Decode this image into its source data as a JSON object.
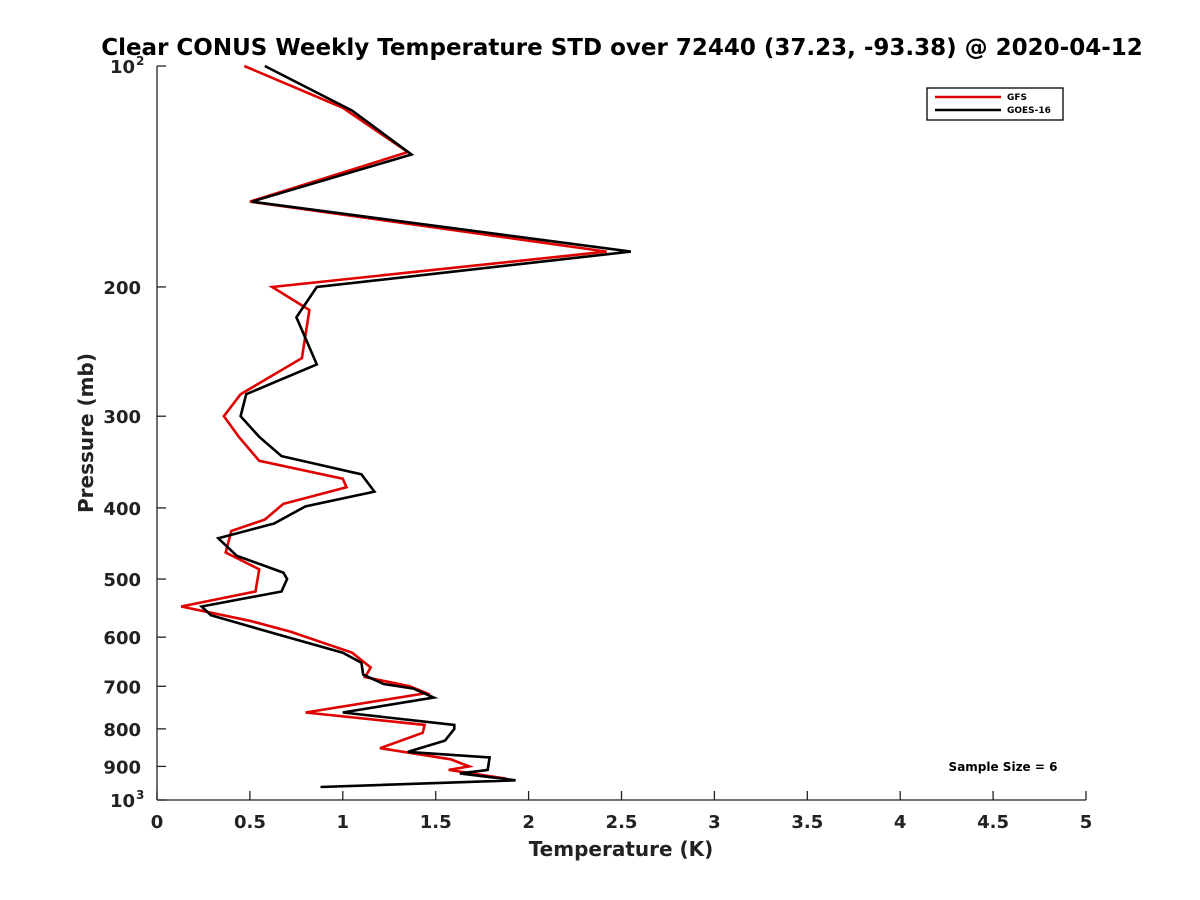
{
  "chart_data": {
    "type": "line",
    "title": "Clear CONUS Weekly Temperature STD over 72440 (37.23, -93.38) @ 2020-04-12",
    "xlabel": "Temperature (K)",
    "ylabel": "Pressure (mb)",
    "xlim": [
      0,
      5
    ],
    "ylim": [
      100,
      1000
    ],
    "y_scale": "log",
    "y_reversed": true,
    "grid": false,
    "x_ticks": [
      {
        "value": 0,
        "label": "0"
      },
      {
        "value": 0.5,
        "label": "0.5"
      },
      {
        "value": 1,
        "label": "1"
      },
      {
        "value": 1.5,
        "label": "1.5"
      },
      {
        "value": 2,
        "label": "2"
      },
      {
        "value": 2.5,
        "label": "2.5"
      },
      {
        "value": 3,
        "label": "3"
      },
      {
        "value": 3.5,
        "label": "3.5"
      },
      {
        "value": 4,
        "label": "4"
      },
      {
        "value": 4.5,
        "label": "4.5"
      },
      {
        "value": 5,
        "label": "5"
      }
    ],
    "y_ticks": [
      {
        "value": 100,
        "label": "10",
        "sup": "2"
      },
      {
        "value": 200,
        "label": "200",
        "sup": ""
      },
      {
        "value": 300,
        "label": "300",
        "sup": ""
      },
      {
        "value": 400,
        "label": "400",
        "sup": ""
      },
      {
        "value": 500,
        "label": "500",
        "sup": ""
      },
      {
        "value": 600,
        "label": "600",
        "sup": ""
      },
      {
        "value": 700,
        "label": "700",
        "sup": ""
      },
      {
        "value": 800,
        "label": "800",
        "sup": ""
      },
      {
        "value": 900,
        "label": "900",
        "sup": ""
      },
      {
        "value": 1000,
        "label": "10",
        "sup": "3"
      }
    ],
    "legend_position": "top-right",
    "annotation": "Sample Size = 6",
    "series": [
      {
        "name": "GFS",
        "color": "#e00000",
        "points": [
          [
            0.47,
            100
          ],
          [
            1.0,
            114
          ],
          [
            1.35,
            131
          ],
          [
            0.5,
            153
          ],
          [
            2.42,
            179
          ],
          [
            0.62,
            200
          ],
          [
            0.82,
            215
          ],
          [
            0.78,
            250
          ],
          [
            0.45,
            280
          ],
          [
            0.36,
            300
          ],
          [
            0.44,
            320
          ],
          [
            0.55,
            345
          ],
          [
            1.0,
            365
          ],
          [
            1.02,
            375
          ],
          [
            0.68,
            395
          ],
          [
            0.58,
            415
          ],
          [
            0.4,
            430
          ],
          [
            0.37,
            460
          ],
          [
            0.55,
            485
          ],
          [
            0.53,
            520
          ],
          [
            0.13,
            545
          ],
          [
            0.5,
            570
          ],
          [
            0.72,
            590
          ],
          [
            1.05,
            630
          ],
          [
            1.15,
            660
          ],
          [
            1.12,
            680
          ],
          [
            1.36,
            700
          ],
          [
            1.45,
            715
          ],
          [
            0.8,
            760
          ],
          [
            1.44,
            790
          ],
          [
            1.43,
            810
          ],
          [
            1.2,
            850
          ],
          [
            1.58,
            880
          ],
          [
            1.68,
            900
          ],
          [
            1.57,
            910
          ],
          [
            1.88,
            935
          ]
        ]
      },
      {
        "name": "GOES-16",
        "color": "#000000",
        "points": [
          [
            0.58,
            100
          ],
          [
            1.05,
            115
          ],
          [
            1.37,
            132
          ],
          [
            0.51,
            153
          ],
          [
            2.55,
            179
          ],
          [
            0.86,
            200
          ],
          [
            0.75,
            220
          ],
          [
            0.86,
            255
          ],
          [
            0.48,
            280
          ],
          [
            0.45,
            300
          ],
          [
            0.55,
            320
          ],
          [
            0.67,
            340
          ],
          [
            1.1,
            360
          ],
          [
            1.17,
            380
          ],
          [
            0.8,
            398
          ],
          [
            0.63,
            420
          ],
          [
            0.33,
            440
          ],
          [
            0.43,
            465
          ],
          [
            0.68,
            490
          ],
          [
            0.7,
            500
          ],
          [
            0.67,
            520
          ],
          [
            0.24,
            545
          ],
          [
            0.29,
            560
          ],
          [
            0.6,
            590
          ],
          [
            1.0,
            630
          ],
          [
            1.1,
            650
          ],
          [
            1.11,
            675
          ],
          [
            1.22,
            695
          ],
          [
            1.38,
            705
          ],
          [
            1.49,
            725
          ],
          [
            1.0,
            760
          ],
          [
            1.6,
            790
          ],
          [
            1.6,
            800
          ],
          [
            1.55,
            830
          ],
          [
            1.35,
            860
          ],
          [
            1.79,
            875
          ],
          [
            1.78,
            910
          ],
          [
            1.63,
            920
          ],
          [
            1.93,
            940
          ],
          [
            0.88,
            960
          ]
        ]
      }
    ]
  }
}
